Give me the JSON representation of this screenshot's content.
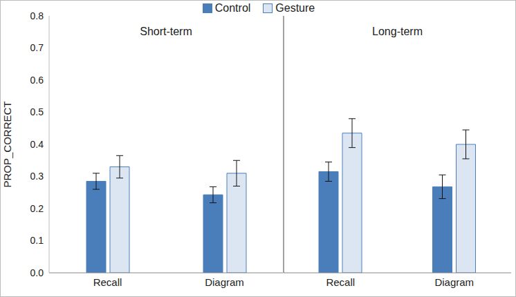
{
  "chart_data": [
    {
      "type": "bar",
      "title": "Short-term",
      "categories": [
        "Recall",
        "Diagram"
      ],
      "y_label": "PROP_CORRECT",
      "series": [
        {
          "name": "Control",
          "color": "#4a7ebb",
          "values": [
            0.285,
            0.243
          ],
          "errors": [
            0.025,
            0.025
          ]
        },
        {
          "name": "Gesture",
          "color": "#dce6f2",
          "values": [
            0.33,
            0.31
          ],
          "errors": [
            0.035,
            0.04
          ]
        }
      ],
      "ylim": [
        0,
        0.8
      ],
      "yticks": [
        {
          "value": 0,
          "label": "0.0"
        },
        0.1,
        0.2,
        0.3,
        0.4,
        0.5,
        0.6,
        0.7,
        0.8
      ],
      "grid": false,
      "legend": "top"
    },
    {
      "type": "bar",
      "title": "Long-term",
      "categories": [
        "Recall",
        "Diagram"
      ],
      "series": [
        {
          "name": "Control",
          "color": "#4a7ebb",
          "values": [
            0.315,
            0.268
          ],
          "errors": [
            0.03,
            0.037
          ]
        },
        {
          "name": "Gesture",
          "color": "#dce6f2",
          "values": [
            0.435,
            0.4
          ],
          "errors": [
            0.045,
            0.045
          ]
        }
      ],
      "ylim": [
        0,
        0.8
      ],
      "yticks": [
        {
          "value": 0,
          "label": "0.0"
        },
        0.1,
        0.2,
        0.3,
        0.4,
        0.5,
        0.6,
        0.7,
        0.8
      ],
      "grid": false,
      "tick_labels": "x"
    }
  ]
}
